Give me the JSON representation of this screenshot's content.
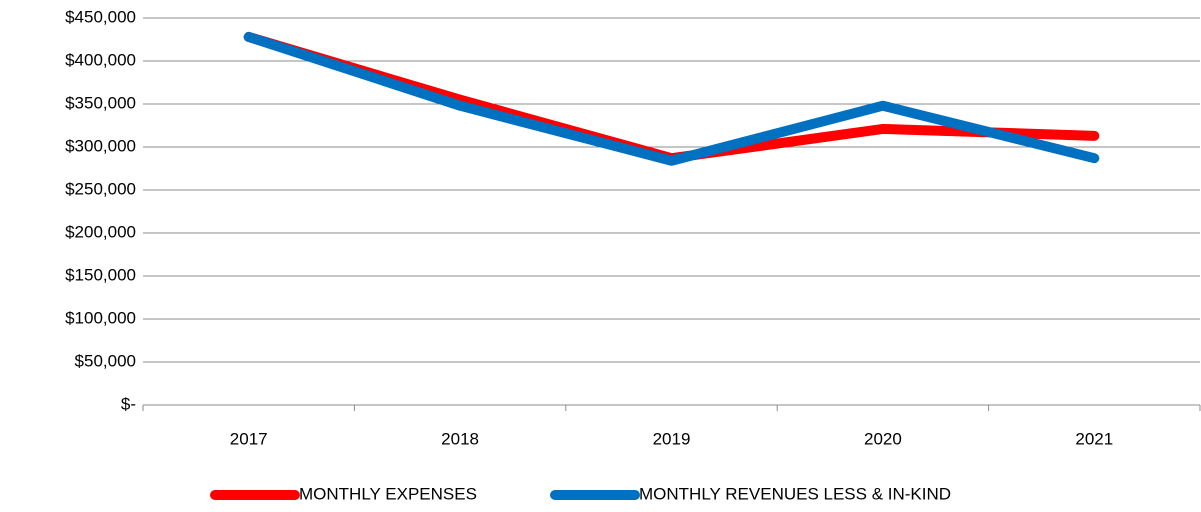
{
  "chart_data": {
    "type": "line",
    "categories": [
      "2017",
      "2018",
      "2019",
      "2020",
      "2021"
    ],
    "series": [
      {
        "name": "MONTHLY EXPENSES",
        "color": "#ff0000",
        "values": [
          428000,
          355000,
          287000,
          321000,
          313000
        ]
      },
      {
        "name": "MONTHLY REVENUES LESS & IN-KIND",
        "color": "#0070c0",
        "values": [
          428000,
          348000,
          284000,
          348000,
          287000
        ]
      }
    ],
    "ylim": [
      0,
      450000
    ],
    "yticks": [
      {
        "value": 0,
        "label": "$-"
      },
      {
        "value": 50000,
        "label": "$50,000"
      },
      {
        "value": 100000,
        "label": "$100,000"
      },
      {
        "value": 150000,
        "label": "$150,000"
      },
      {
        "value": 200000,
        "label": "$200,000"
      },
      {
        "value": 250000,
        "label": "$250,000"
      },
      {
        "value": 300000,
        "label": "$300,000"
      },
      {
        "value": 350000,
        "label": "$350,000"
      },
      {
        "value": 400000,
        "label": "$400,000"
      },
      {
        "value": 450000,
        "label": "$450,000"
      }
    ],
    "grid": true,
    "legend": "bottom"
  }
}
